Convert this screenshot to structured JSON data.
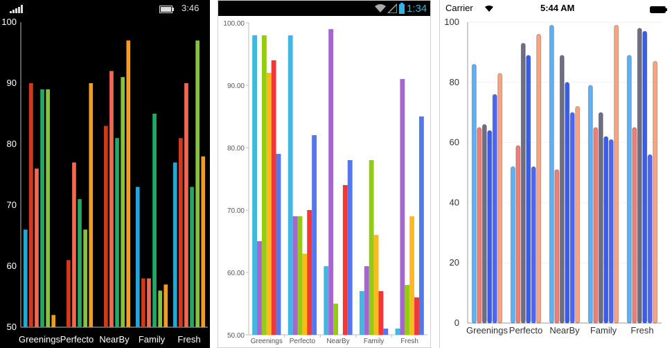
{
  "windows_phone": {
    "status_time": "3:46",
    "chart_data": {
      "type": "bar",
      "categories": [
        "Greenings",
        "Perfecto",
        "NearBy",
        "Family",
        "Fresh"
      ],
      "ylim": [
        50,
        100
      ],
      "yticks": [
        "50",
        "60",
        "70",
        "80",
        "90",
        "100"
      ],
      "grid": false,
      "series": [
        {
          "color": "#2aa3d6",
          "values": [
            66,
            50,
            50,
            73,
            77
          ]
        },
        {
          "color": "#cf3a18",
          "values": [
            90,
            61,
            83,
            58,
            81
          ]
        },
        {
          "color": "#f06a52",
          "values": [
            76,
            77,
            92,
            58,
            90
          ]
        },
        {
          "color": "#1faa66",
          "values": [
            89,
            71,
            81,
            85,
            73
          ]
        },
        {
          "color": "#84c43c",
          "values": [
            89,
            66,
            91,
            56,
            97
          ]
        },
        {
          "color": "#f79a1e",
          "values": [
            52,
            90,
            97,
            57,
            78
          ]
        }
      ]
    }
  },
  "android": {
    "status_time": "1:34",
    "chart_data": {
      "type": "bar",
      "categories": [
        "Greenings",
        "Perfecto",
        "NearBy",
        "Family",
        "Fresh"
      ],
      "ylim": [
        50,
        100
      ],
      "yticks": [
        "50.00",
        "60.00",
        "70.00",
        "80.00",
        "90.00",
        "100.00"
      ],
      "grid": false,
      "series": [
        {
          "color": "#44b6e3",
          "values": [
            98,
            98,
            61,
            57,
            51
          ]
        },
        {
          "color": "#a566d2",
          "values": [
            65,
            69,
            99,
            61,
            91
          ]
        },
        {
          "color": "#94cc14",
          "values": [
            98,
            69,
            55,
            78,
            58
          ]
        },
        {
          "color": "#fbbb1c",
          "values": [
            92,
            63,
            50,
            66,
            69
          ]
        },
        {
          "color": "#f03838",
          "values": [
            94,
            70,
            74,
            57,
            56
          ]
        },
        {
          "color": "#5577ee",
          "values": [
            79,
            82,
            78,
            51,
            85
          ]
        }
      ]
    }
  },
  "ios": {
    "status_carrier": "Carrier",
    "status_time": "5:44 AM",
    "chart_data": {
      "type": "bar",
      "categories": [
        "Greenings",
        "Perfecto",
        "NearBy",
        "Family",
        "Fresh"
      ],
      "ylim": [
        0,
        100
      ],
      "yticks": [
        "0",
        "20",
        "40",
        "60",
        "80",
        "100"
      ],
      "grid": true,
      "series": [
        {
          "color": "#5db2f5",
          "values": [
            86,
            52,
            99,
            79,
            89
          ]
        },
        {
          "color": "#f27d77",
          "values": [
            65,
            59,
            51,
            65,
            65
          ]
        },
        {
          "color": "#6e6e82",
          "values": [
            66,
            93,
            89,
            70,
            98
          ]
        },
        {
          "color": "#3a5de6",
          "values": [
            64,
            89,
            80,
            62,
            97
          ]
        },
        {
          "color": "#4f66f2",
          "values": [
            76,
            52,
            70,
            61,
            56
          ]
        },
        {
          "color": "#f9a380",
          "values": [
            83,
            96,
            72,
            99,
            87
          ]
        }
      ]
    }
  }
}
